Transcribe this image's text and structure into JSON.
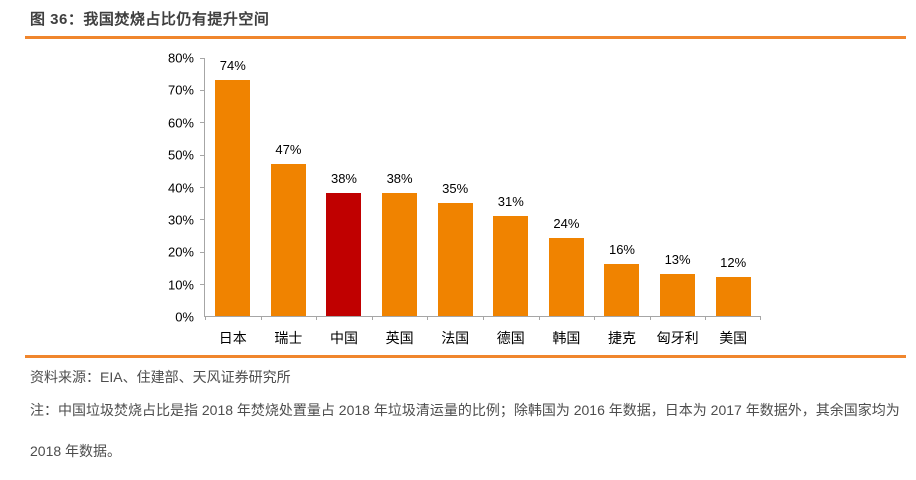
{
  "figure": {
    "title": "图 36：我国焚烧占比仍有提升空间",
    "source": "资料来源：EIA、住建部、天风证券研究所",
    "note": "注：中国垃圾焚烧占比是指 2018 年焚烧处置量占 2018 年垃圾清运量的比例；除韩国为 2016 年数据，日本为 2017 年数据外，其余国家均为 2018 年数据。"
  },
  "colors": {
    "bar_orange": "#f08300",
    "bar_highlight_red": "#c00000",
    "divider_orange": "#f0862d",
    "axis_gray": "#a6a6a6",
    "title_text": "#3f3f3f",
    "footer_text": "#4d4d4d"
  },
  "chart_data": {
    "type": "bar",
    "title": "我国焚烧占比仍有提升空间",
    "categories": [
      "日本",
      "瑞士",
      "中国",
      "英国",
      "法国",
      "德国",
      "韩国",
      "捷克",
      "匈牙利",
      "美国"
    ],
    "values": [
      74,
      47,
      38,
      38,
      35,
      31,
      24,
      16,
      13,
      12
    ],
    "value_labels": [
      "74%",
      "47%",
      "38%",
      "38%",
      "35%",
      "31%",
      "24%",
      "16%",
      "13%",
      "12%"
    ],
    "unit": "%",
    "highlight_index": 2,
    "highlight_category": "中国",
    "xlabel": "",
    "ylabel": "",
    "ylim": [
      0,
      80
    ],
    "ytick_step": 10,
    "ytick_labels": [
      "0%",
      "10%",
      "20%",
      "30%",
      "40%",
      "50%",
      "60%",
      "70%",
      "80%"
    ],
    "grid": false,
    "legend": "none",
    "data_labels": "above-bars"
  }
}
